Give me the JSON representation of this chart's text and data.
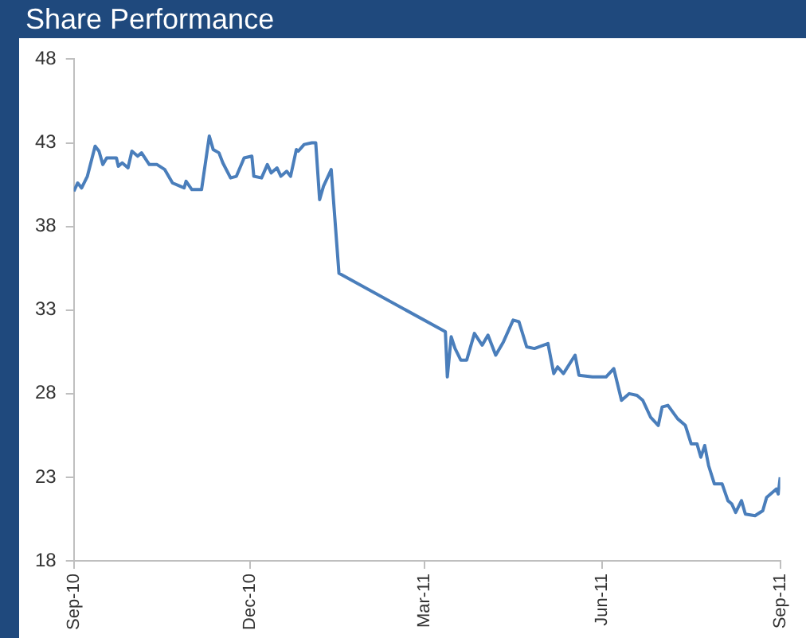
{
  "chart_data": {
    "type": "line",
    "title": "Share Performance",
    "x": [
      "2010-09-01",
      "2010-09-03",
      "2010-09-05",
      "2010-09-08",
      "2010-09-12",
      "2010-09-14",
      "2010-09-16",
      "2010-09-18",
      "2010-09-23",
      "2010-09-24",
      "2010-09-26",
      "2010-09-29",
      "2010-10-01",
      "2010-10-04",
      "2010-10-06",
      "2010-10-10",
      "2010-10-14",
      "2010-10-18",
      "2010-10-22",
      "2010-10-26",
      "2010-10-28",
      "2010-10-29",
      "2010-11-01",
      "2010-11-06",
      "2010-11-10",
      "2010-11-12",
      "2010-11-15",
      "2010-11-17",
      "2010-11-21",
      "2010-11-24",
      "2010-11-28",
      "2010-12-02",
      "2010-12-03",
      "2010-12-07",
      "2010-12-10",
      "2010-12-12",
      "2010-12-15",
      "2010-12-17",
      "2010-12-20",
      "2010-12-22",
      "2010-12-25",
      "2010-12-26",
      "2010-12-29",
      "2011-01-02",
      "2011-01-04",
      "2011-01-06",
      "2011-01-08",
      "2011-01-10",
      "2011-01-12",
      "2011-01-16",
      "2011-03-12",
      "2011-03-13",
      "2011-03-15",
      "2011-03-17",
      "2011-03-20",
      "2011-03-23",
      "2011-03-27",
      "2011-03-31",
      "2011-04-03",
      "2011-04-07",
      "2011-04-11",
      "2011-04-16",
      "2011-04-19",
      "2011-04-23",
      "2011-04-27",
      "2011-05-04",
      "2011-05-07",
      "2011-05-09",
      "2011-05-12",
      "2011-05-18",
      "2011-05-20",
      "2011-05-27",
      "2011-06-03",
      "2011-06-07",
      "2011-06-11",
      "2011-06-15",
      "2011-06-19",
      "2011-06-22",
      "2011-06-26",
      "2011-06-30",
      "2011-07-02",
      "2011-07-05",
      "2011-07-10",
      "2011-07-14",
      "2011-07-17",
      "2011-07-20",
      "2011-07-22",
      "2011-07-24",
      "2011-07-26",
      "2011-07-29",
      "2011-08-02",
      "2011-08-05",
      "2011-08-07",
      "2011-08-09",
      "2011-08-12",
      "2011-08-14",
      "2011-08-19",
      "2011-08-23",
      "2011-08-25",
      "2011-08-30",
      "2011-08-31",
      "2011-09-01"
    ],
    "series": [
      {
        "color": "#4a7ebb",
        "values": [
          40.1,
          40.6,
          40.3,
          41.0,
          42.8,
          42.5,
          41.7,
          42.1,
          42.1,
          41.6,
          41.8,
          41.5,
          42.5,
          42.2,
          42.4,
          41.7,
          41.7,
          41.4,
          40.6,
          40.4,
          40.3,
          40.7,
          40.2,
          40.2,
          43.4,
          42.6,
          42.4,
          41.8,
          40.9,
          41.0,
          42.1,
          42.2,
          41.0,
          40.9,
          41.7,
          41.2,
          41.5,
          41.0,
          41.3,
          41.0,
          42.6,
          42.5,
          42.9,
          43.0,
          43.0,
          39.6,
          40.4,
          40.9,
          41.4,
          35.2,
          31.7,
          29.0,
          31.4,
          30.7,
          30.0,
          30.0,
          31.6,
          30.9,
          31.5,
          30.3,
          31.1,
          32.4,
          32.3,
          30.8,
          30.7,
          31.0,
          29.2,
          29.6,
          29.2,
          30.3,
          29.1,
          29.0,
          29.0,
          29.5,
          27.6,
          28.0,
          27.9,
          27.6,
          26.6,
          26.1,
          27.2,
          27.3,
          26.5,
          26.1,
          25.0,
          25.0,
          24.2,
          24.9,
          23.7,
          22.6,
          22.6,
          21.6,
          21.4,
          20.9,
          21.6,
          20.8,
          20.7,
          21.0,
          21.8,
          22.3,
          22.0,
          23.0
        ]
      }
    ],
    "xlim": [
      "2010-09-01",
      "2011-09-01"
    ],
    "xticks": [
      {
        "value": "2010-09-01",
        "label": "Sep-10"
      },
      {
        "value": "2010-12-01",
        "label": "Dec-10"
      },
      {
        "value": "2011-03-01",
        "label": "Mar-11"
      },
      {
        "value": "2011-06-01",
        "label": "Jun-11"
      },
      {
        "value": "2011-09-01",
        "label": "Sep-11"
      }
    ],
    "ylim": [
      18,
      48
    ],
    "yticks": [
      18,
      23,
      28,
      33,
      38,
      43,
      48
    ]
  }
}
